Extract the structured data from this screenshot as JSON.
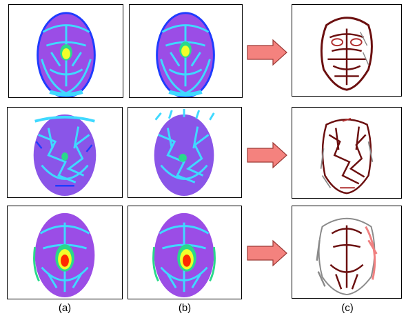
{
  "figure": {
    "column_labels": [
      "(a)",
      "(b)",
      "(c)"
    ],
    "rows": [
      {
        "id": "row-1"
      },
      {
        "id": "row-2"
      },
      {
        "id": "row-3"
      }
    ],
    "colors": {
      "thermal_base": "#9b4de6",
      "thermal_vein": "#3fd9ff",
      "thermal_edge": "#1e3cff",
      "thermal_hot": "#f2ff2a",
      "thermal_peak": "#ff2a00",
      "vessel_dark": "#6b0f0f",
      "vessel_mid": "#b03030",
      "vessel_gray": "#8a8a8a",
      "vessel_pink": "#f08080",
      "arrow_fill": "#f4827e",
      "arrow_stroke": "#9c3a36"
    }
  }
}
